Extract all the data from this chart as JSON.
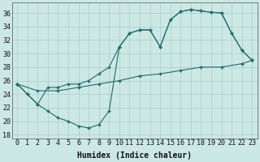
{
  "xlabel": "Humidex (Indice chaleur)",
  "bg_color": "#cce8e5",
  "grid_color": "#aaccca",
  "line_color": "#1a6e65",
  "xlim": [
    -0.5,
    23.5
  ],
  "ylim": [
    17.5,
    37.5
  ],
  "xticks": [
    0,
    1,
    2,
    3,
    4,
    5,
    6,
    7,
    8,
    9,
    10,
    11,
    12,
    13,
    14,
    15,
    16,
    17,
    18,
    19,
    20,
    21,
    22,
    23
  ],
  "yticks": [
    18,
    20,
    22,
    24,
    26,
    28,
    30,
    32,
    34,
    36
  ],
  "line1_x": [
    0,
    1,
    2,
    3,
    4,
    5,
    6,
    7,
    8,
    9,
    10,
    11,
    12,
    13,
    14,
    15,
    16,
    17,
    18,
    19,
    20,
    21,
    22,
    23
  ],
  "line1_y": [
    25.5,
    24,
    22.5,
    25,
    25,
    25.5,
    25.5,
    26,
    27,
    28,
    31,
    33,
    33.5,
    33.5,
    31,
    35,
    36.2,
    36.5,
    36.3,
    36.1,
    36,
    33,
    30.5,
    29
  ],
  "line2_x": [
    0,
    1,
    2,
    3,
    4,
    5,
    6,
    7,
    8,
    9,
    10,
    11,
    12,
    13,
    14,
    15,
    16,
    17,
    18,
    19,
    20,
    21,
    22,
    23
  ],
  "line2_y": [
    25.5,
    24,
    22.5,
    21.5,
    20.5,
    20,
    19.3,
    19,
    19.5,
    21.5,
    31,
    33,
    33.5,
    33.5,
    31,
    35,
    36.2,
    36.5,
    36.3,
    36.1,
    36,
    33,
    30.5,
    29
  ],
  "line3_x": [
    0,
    2,
    4,
    6,
    8,
    10,
    12,
    14,
    16,
    18,
    20,
    22,
    23
  ],
  "line3_y": [
    25.5,
    24.5,
    24.5,
    25,
    25.5,
    26,
    26.7,
    27,
    27.5,
    28,
    28,
    28.5,
    29
  ],
  "font_size_label": 7,
  "font_size_tick": 6
}
